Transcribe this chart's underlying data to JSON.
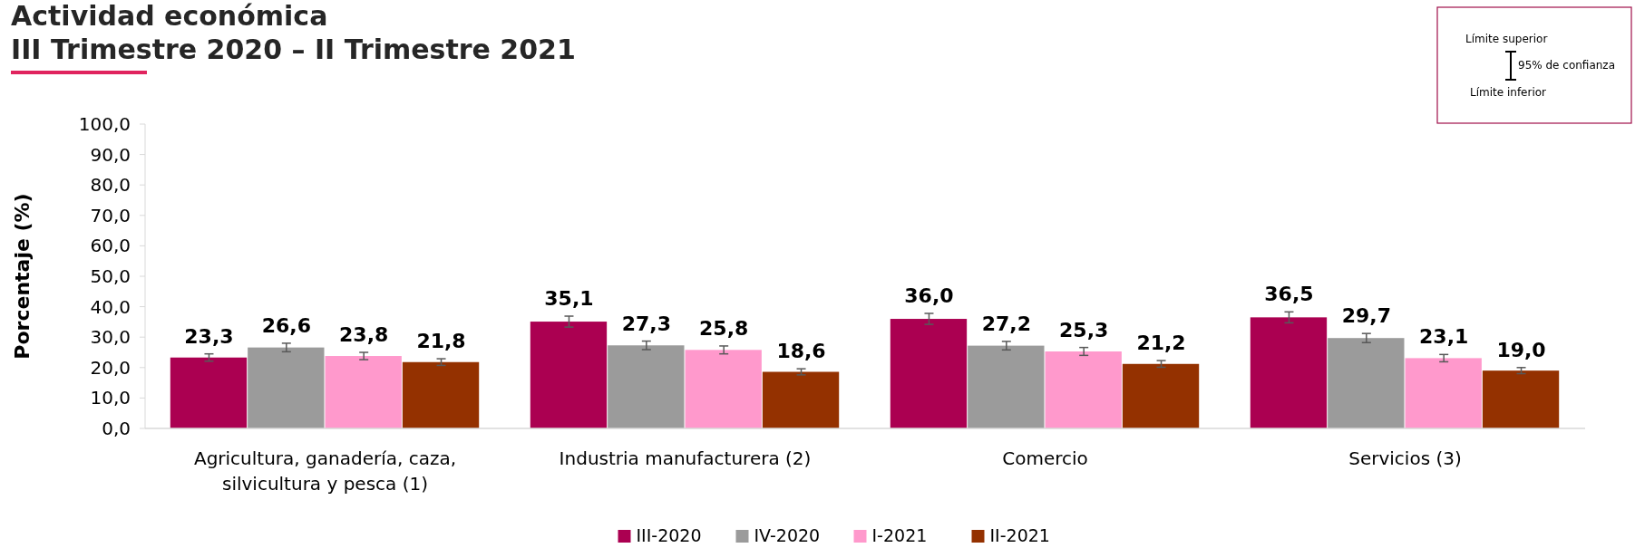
{
  "chart_data": {
    "type": "bar",
    "title": "Actividad económica",
    "subtitle": "III Trimestre 2020 – II Trimestre 2021",
    "ylabel": "Porcentaje (%)",
    "categories": [
      "Agricultura, ganadería, caza, silvicultura y pesca (1)",
      "Industria manufacturera (2)",
      "Comercio",
      "Servicios (3)"
    ],
    "series": [
      {
        "name": "III-2020",
        "color": "#ab0051",
        "values": [
          23.3,
          35.1,
          36.0,
          36.5
        ],
        "value_labels": [
          "23,3",
          "35,1",
          "36,0",
          "36,5"
        ],
        "errors": [
          1.2,
          1.8,
          1.8,
          1.8
        ]
      },
      {
        "name": "IV-2020",
        "color": "#9b9b9b",
        "values": [
          26.6,
          27.3,
          27.2,
          29.7
        ],
        "value_labels": [
          "26,6",
          "27,3",
          "27,2",
          "29,7"
        ],
        "errors": [
          1.4,
          1.4,
          1.4,
          1.5
        ]
      },
      {
        "name": "I-2021",
        "color": "#ff99cc",
        "values": [
          23.8,
          25.8,
          25.3,
          23.1
        ],
        "value_labels": [
          "23,8",
          "25,8",
          "25,3",
          "23,1"
        ],
        "errors": [
          1.2,
          1.3,
          1.3,
          1.2
        ]
      },
      {
        "name": "II-2021",
        "color": "#943100",
        "values": [
          21.8,
          18.6,
          21.2,
          19.0
        ],
        "value_labels": [
          "21,8",
          "18,6",
          "21,2",
          "19,0"
        ],
        "errors": [
          1.1,
          1.0,
          1.1,
          1.0
        ]
      }
    ],
    "ylim": [
      0,
      100
    ],
    "yticks": [
      {
        "value": 0,
        "label": "0,0"
      },
      {
        "value": 10,
        "label": "10,0"
      },
      {
        "value": 20,
        "label": "20,0"
      },
      {
        "value": 30,
        "label": "30,0"
      },
      {
        "value": 40,
        "label": "40,0"
      },
      {
        "value": 50,
        "label": "50,0"
      },
      {
        "value": 60,
        "label": "60,0"
      },
      {
        "value": 70,
        "label": "70,0"
      },
      {
        "value": 80,
        "label": "80,0"
      },
      {
        "value": 90,
        "label": "90,0"
      },
      {
        "value": 100,
        "label": "100,0"
      }
    ],
    "grid": false,
    "legend": "bottom",
    "annotations": [
      "Límite superior",
      "95% de confianza",
      "Límite inferior"
    ]
  }
}
